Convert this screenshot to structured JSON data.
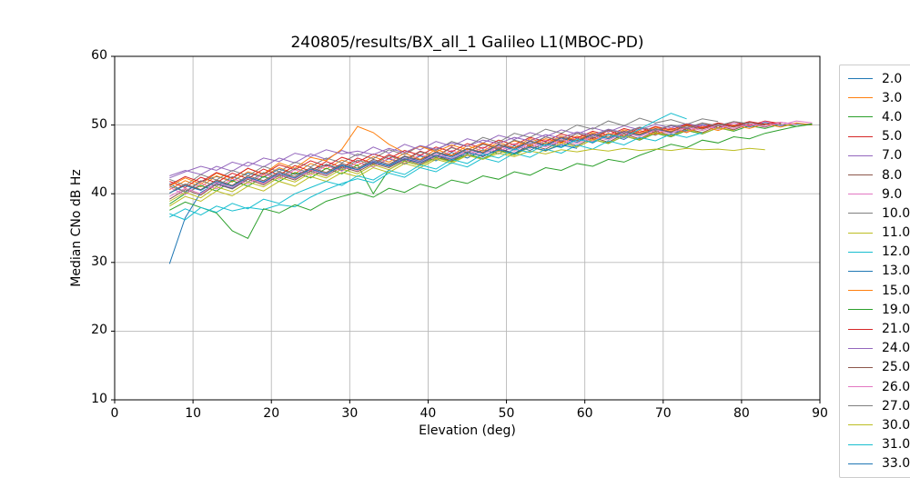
{
  "chart_data": {
    "type": "line",
    "title": "240805/results/BX_all_1 Galileo L1(MBOC-PD)",
    "xlabel": "Elevation (deg)",
    "ylabel": "Median CNo dB Hz",
    "xlim": [
      0,
      90
    ],
    "ylim": [
      10,
      60
    ],
    "x_ticks": [
      0,
      10,
      20,
      30,
      40,
      50,
      60,
      70,
      80,
      90
    ],
    "y_ticks": [
      10,
      20,
      30,
      40,
      50,
      60
    ],
    "grid": true,
    "legend_position": "right-outside",
    "x_start": 7,
    "x_step": 2,
    "series": [
      {
        "name": "2.0",
        "color": "#1f77b4",
        "values": [
          41.5,
          40.2,
          41.8,
          42.5,
          41.9,
          43.0,
          42.4,
          43.6,
          42.8,
          43.5,
          44.2,
          43.4,
          44.6,
          43.9,
          45.1,
          44.3,
          45.5,
          44.8,
          46.0,
          45.2,
          46.4,
          45.8,
          47.0,
          46.3,
          47.5,
          46.8,
          48.1,
          47.4,
          48.6,
          47.9,
          49.2,
          48.5,
          49.6,
          48.9,
          50.1,
          49.4,
          50.3,
          49.7,
          50.4,
          49.9,
          50.2,
          50.1
        ]
      },
      {
        "name": "3.0",
        "color": "#ff7f0e",
        "values": [
          40.6,
          41.9,
          41.0,
          42.6,
          41.7,
          43.2,
          42.5,
          43.8,
          42.9,
          44.4,
          43.6,
          44.9,
          44.1,
          45.4,
          44.6,
          45.9,
          45.0,
          46.5,
          45.6,
          47.0,
          46.2,
          47.5,
          46.7,
          48.0,
          47.3,
          48.4,
          47.8,
          48.9,
          48.2,
          49.3,
          48.7,
          49.7,
          49.1,
          50.0,
          49.5,
          50.2,
          49.8,
          50.0
        ]
      },
      {
        "name": "4.0",
        "color": "#2ca02c",
        "values": [
          38.5,
          40.0,
          41.2,
          40.4,
          41.9,
          41.1,
          42.5,
          41.8,
          43.1,
          42.3,
          43.7,
          42.9,
          44.2,
          40.0,
          43.5,
          44.8,
          44.1,
          45.3,
          44.7,
          45.8,
          45.1,
          46.3,
          45.7,
          46.9,
          46.2,
          47.4,
          46.8,
          47.9,
          47.3,
          48.4,
          47.8,
          48.8,
          48.3,
          49.2,
          48.7,
          49.6,
          49.1,
          49.9,
          49.5,
          50.1,
          49.8,
          50.2
        ]
      },
      {
        "name": "5.0",
        "color": "#d62728",
        "values": [
          41.8,
          40.9,
          42.4,
          41.6,
          43.0,
          42.2,
          43.6,
          42.7,
          44.1,
          43.3,
          44.7,
          43.8,
          45.2,
          44.4,
          45.7,
          44.9,
          46.2,
          45.4,
          46.8,
          45.9,
          47.3,
          46.4,
          47.8,
          46.9,
          48.3,
          47.5,
          48.8,
          48.0,
          49.2,
          48.4,
          49.6,
          48.9,
          50.0,
          49.3,
          50.3,
          49.6,
          50.5,
          49.9,
          50.6,
          50.2
        ]
      },
      {
        "name": "7.0",
        "color": "#9467bd",
        "values": [
          42.6,
          43.4,
          42.8,
          44.0,
          43.3,
          44.6,
          43.9,
          45.2,
          44.5,
          45.8,
          45.0,
          46.3,
          45.5,
          46.8,
          45.9,
          47.2,
          46.4,
          47.6,
          46.9,
          48.0,
          47.4,
          48.5,
          47.9,
          48.9,
          48.3,
          49.3,
          48.7,
          49.6,
          49.0,
          49.9,
          49.3,
          50.1,
          49.6,
          50.2,
          49.8,
          50.0
        ]
      },
      {
        "name": "8.0",
        "color": "#8c564b",
        "values": [
          39.2,
          40.6,
          39.8,
          41.4,
          40.7,
          42.1,
          41.3,
          42.7,
          42.0,
          43.3,
          42.6,
          43.9,
          43.2,
          44.4,
          43.8,
          45.0,
          44.3,
          45.5,
          44.8,
          46.1,
          45.4,
          46.6,
          45.9,
          47.1,
          46.5,
          47.7,
          47.0,
          48.2,
          47.5,
          48.7,
          48.0,
          49.1,
          48.5,
          49.5,
          48.9,
          49.9,
          49.3,
          50.2,
          49.7,
          50.4,
          50.1
        ]
      },
      {
        "name": "9.0",
        "color": "#e377c2",
        "values": [
          40.9,
          39.9,
          41.5,
          40.7,
          42.2,
          41.4,
          42.9,
          42.1,
          43.5,
          42.7,
          44.1,
          43.3,
          44.6,
          43.9,
          45.2,
          44.4,
          45.7,
          45.0,
          46.3,
          45.5,
          46.8,
          46.1,
          47.3,
          46.6,
          47.8,
          47.1,
          48.3,
          47.6,
          48.8,
          48.1,
          49.2,
          48.6,
          49.6,
          49.0,
          50.0,
          49.4,
          50.3,
          49.8,
          50.5,
          50.0,
          50.6,
          50.3
        ]
      },
      {
        "name": "10.0",
        "color": "#7f7f7f",
        "values": [
          42.1,
          41.2,
          42.8,
          42.0,
          43.4,
          42.6,
          44.0,
          43.2,
          44.6,
          43.9,
          45.2,
          44.5,
          45.8,
          45.1,
          46.4,
          45.7,
          47.0,
          46.3,
          47.6,
          46.9,
          48.2,
          47.5,
          48.8,
          48.2,
          49.4,
          48.8,
          50.0,
          49.4,
          50.6,
          49.9,
          51.0,
          50.3,
          50.8,
          50.1,
          50.9,
          50.5
        ]
      },
      {
        "name": "11.0",
        "color": "#bcbd22",
        "values": [
          38.2,
          39.6,
          38.9,
          40.4,
          39.7,
          41.1,
          40.4,
          41.8,
          41.1,
          42.5,
          41.8,
          43.1,
          42.5,
          43.8,
          43.1,
          44.4,
          43.8,
          45.0,
          44.4,
          45.6,
          45.0,
          46.2,
          45.6,
          46.8,
          46.2,
          47.4,
          46.8,
          47.9,
          47.4,
          48.4,
          47.9,
          48.9,
          48.4,
          49.3,
          48.8,
          49.6,
          49.2
        ]
      },
      {
        "name": "12.0",
        "color": "#17becf",
        "values": [
          36.6,
          37.8,
          36.9,
          38.2,
          37.5,
          38.0,
          37.7,
          38.4,
          38.1,
          39.5,
          40.6,
          41.5,
          42.2,
          41.6,
          43.0,
          42.4,
          43.8,
          43.2,
          44.5,
          43.9,
          45.2,
          44.6,
          45.9,
          45.3,
          46.5,
          45.9,
          47.1,
          46.5,
          47.7,
          47.1,
          48.2,
          47.7,
          48.7,
          48.2,
          48.9
        ]
      },
      {
        "name": "13.0",
        "color": "#1f77b4",
        "values": [
          29.8,
          36.5,
          40.2,
          41.5,
          40.8,
          42.3,
          41.6,
          42.9,
          42.2,
          43.6,
          42.9,
          44.2,
          43.5,
          44.8,
          44.1,
          45.4,
          44.7,
          46.0,
          45.3,
          46.5,
          45.9,
          47.1,
          46.4,
          47.6,
          47.0,
          48.1,
          47.5,
          48.6,
          48.0,
          49.0,
          48.5,
          49.4,
          48.9,
          49.2
        ]
      },
      {
        "name": "15.0",
        "color": "#ff7f0e",
        "values": [
          41.1,
          42.3,
          41.4,
          43.0,
          42.2,
          43.7,
          42.9,
          44.5,
          43.7,
          45.3,
          44.8,
          46.5,
          49.8,
          48.9,
          47.2,
          46.0,
          46.9,
          46.1,
          47.1,
          46.4,
          47.4,
          46.7,
          47.7,
          47.0,
          48.0,
          47.4,
          48.4,
          47.8,
          48.8,
          48.2,
          49.2,
          48.6,
          49.5,
          48.9,
          49.8,
          49.2,
          50.0,
          49.5,
          50.2,
          49.7,
          50.3,
          50.0
        ]
      },
      {
        "name": "19.0",
        "color": "#2ca02c",
        "values": [
          37.6,
          38.8,
          38.0,
          37.2,
          34.6,
          33.5,
          37.8,
          37.2,
          38.4,
          37.6,
          38.9,
          39.6,
          40.2,
          39.5,
          40.8,
          40.2,
          41.4,
          40.8,
          42.0,
          41.5,
          42.6,
          42.1,
          43.2,
          42.7,
          43.8,
          43.4,
          44.4,
          44.0,
          45.0,
          44.6,
          45.6,
          46.4,
          47.2,
          46.7,
          47.8,
          47.4,
          48.3,
          48.0,
          48.8,
          49.3,
          49.8,
          50.1
        ]
      },
      {
        "name": "21.0",
        "color": "#d62728",
        "values": [
          41.3,
          42.5,
          41.7,
          43.1,
          42.3,
          43.7,
          42.8,
          44.2,
          43.5,
          44.8,
          44.0,
          45.3,
          44.6,
          45.8,
          45.1,
          46.3,
          45.6,
          46.8,
          46.1,
          47.3,
          46.6,
          47.8,
          47.1,
          48.2,
          47.6,
          48.7,
          48.1,
          49.1,
          48.5,
          49.5,
          48.9,
          49.8,
          49.3,
          50.1,
          49.6,
          50.3,
          49.9,
          50.5,
          50.1,
          50.4
        ]
      },
      {
        "name": "24.0",
        "color": "#9467bd",
        "values": [
          42.3,
          43.2,
          44.0,
          43.4,
          44.6,
          44.0,
          45.2,
          44.7,
          45.9,
          45.4,
          46.4,
          45.8,
          46.2,
          45.7,
          46.6,
          46.0,
          47.0,
          46.5,
          47.4,
          46.9,
          47.8,
          47.3,
          48.2,
          47.7,
          48.6,
          48.1,
          49.0,
          48.5,
          49.4,
          48.9,
          49.7,
          49.2,
          49.9,
          49.5,
          50.0
        ]
      },
      {
        "name": "25.0",
        "color": "#8c564b",
        "values": [
          40.1,
          41.4,
          40.6,
          42.0,
          41.2,
          42.6,
          41.9,
          43.2,
          42.5,
          43.8,
          43.1,
          44.4,
          43.7,
          45.0,
          44.3,
          45.5,
          44.9,
          46.1,
          45.5,
          46.6,
          46.0,
          47.2,
          46.6,
          47.7,
          47.1,
          48.2,
          47.7,
          48.7,
          48.2,
          49.1,
          48.6,
          49.5,
          49.0,
          49.9,
          49.4,
          50.2,
          49.7,
          50.4,
          50.0
        ]
      },
      {
        "name": "26.0",
        "color": "#e377c2",
        "values": [
          39.6,
          40.8,
          40.0,
          41.6,
          40.9,
          42.3,
          41.5,
          42.9,
          42.2,
          43.5,
          42.8,
          44.1,
          43.4,
          44.7,
          44.0,
          45.2,
          44.6,
          45.8,
          45.1,
          46.3,
          45.7,
          46.9,
          46.2,
          47.4,
          46.8,
          47.9,
          47.3,
          48.4,
          47.8,
          48.9,
          48.3,
          49.3,
          48.8,
          49.7,
          49.2,
          50.0,
          49.5,
          50.2,
          49.8,
          50.4,
          50.1
        ]
      },
      {
        "name": "27.0",
        "color": "#7f7f7f",
        "values": [
          41.1,
          40.3,
          41.9,
          41.1,
          42.5,
          41.7,
          43.1,
          42.4,
          43.7,
          43.0,
          44.3,
          43.6,
          44.9,
          44.2,
          45.5,
          44.8,
          46.1,
          45.4,
          46.7,
          46.0,
          47.2,
          46.6,
          47.8,
          47.2,
          48.3,
          47.7,
          48.8,
          48.3,
          49.3,
          48.8,
          49.7,
          49.2,
          50.0,
          49.6,
          50.3,
          49.9,
          50.5,
          50.2
        ]
      },
      {
        "name": "30.0",
        "color": "#bcbd22",
        "values": [
          38.9,
          40.2,
          39.4,
          41.0,
          40.3,
          41.7,
          41.0,
          42.4,
          41.7,
          43.0,
          42.3,
          43.6,
          42.9,
          44.2,
          43.5,
          44.7,
          44.1,
          45.2,
          44.6,
          45.6,
          45.0,
          45.9,
          45.4,
          46.2,
          45.8,
          46.4,
          46.1,
          46.5,
          46.2,
          46.6,
          46.3,
          46.5,
          46.3,
          46.6,
          46.4,
          46.5,
          46.3,
          46.6,
          46.4
        ]
      },
      {
        "name": "31.0",
        "color": "#17becf",
        "values": [
          37.1,
          36.2,
          38.0,
          37.3,
          38.6,
          37.8,
          39.2,
          38.6,
          40.0,
          40.9,
          41.8,
          41.2,
          42.6,
          42.0,
          43.4,
          42.8,
          44.2,
          43.6,
          45.0,
          44.4,
          45.8,
          45.2,
          46.5,
          46.0,
          47.2,
          46.7,
          47.9,
          47.5,
          48.6,
          48.2,
          49.4,
          50.6,
          51.7,
          50.9
        ]
      },
      {
        "name": "33.0",
        "color": "#1f77b4",
        "values": [
          40.1,
          41.2,
          40.5,
          41.8,
          41.1,
          42.4,
          41.7,
          43.0,
          42.3,
          43.6,
          42.9,
          44.1,
          43.5,
          44.6,
          44.0,
          45.1,
          44.5,
          45.6,
          45.0,
          46.0,
          45.5,
          46.4,
          45.9,
          46.8,
          46.3,
          47.1,
          46.6
        ]
      }
    ]
  }
}
